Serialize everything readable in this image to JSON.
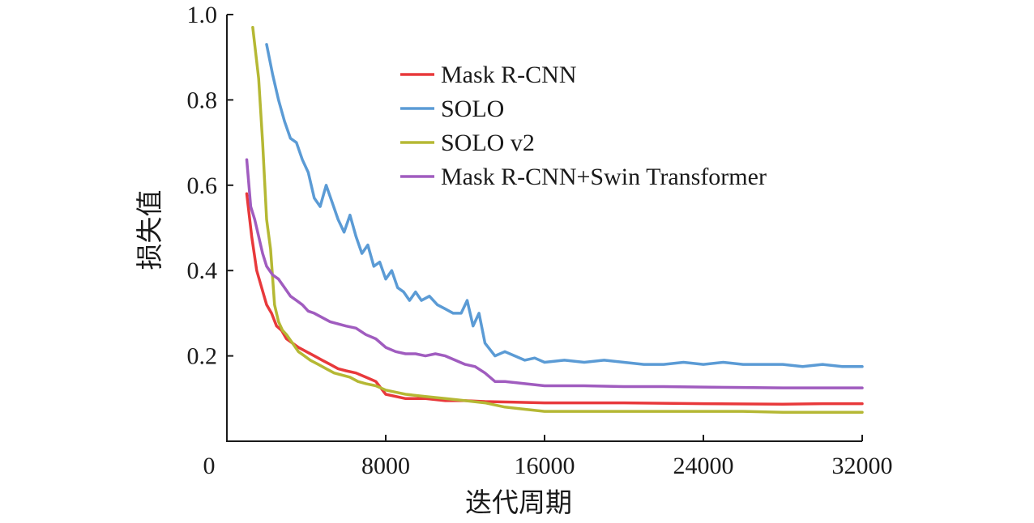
{
  "chart_data": {
    "type": "line",
    "title": "",
    "xlabel": "迭代周期",
    "ylabel": "损失值",
    "xlim": [
      0,
      32000
    ],
    "ylim": [
      0,
      1.0
    ],
    "x_ticks": [
      "0",
      "8000",
      "16000",
      "24000",
      "32000"
    ],
    "x_tick_values": [
      0,
      8000,
      16000,
      24000,
      32000
    ],
    "y_ticks": [
      "0.2",
      "0.4",
      "0.6",
      "0.8",
      "1.0"
    ],
    "y_tick_values": [
      0.2,
      0.4,
      0.6,
      0.8,
      1.0
    ],
    "grid": false,
    "legend_position": "top-center",
    "series": [
      {
        "name": "Mask R-CNN",
        "color": "#e8393b",
        "points": [
          [
            1000,
            0.58
          ],
          [
            1250,
            0.48
          ],
          [
            1500,
            0.4
          ],
          [
            1750,
            0.36
          ],
          [
            2000,
            0.32
          ],
          [
            2250,
            0.3
          ],
          [
            2500,
            0.27
          ],
          [
            2750,
            0.26
          ],
          [
            3000,
            0.24
          ],
          [
            3300,
            0.23
          ],
          [
            3600,
            0.22
          ],
          [
            4000,
            0.21
          ],
          [
            4400,
            0.2
          ],
          [
            4800,
            0.19
          ],
          [
            5200,
            0.18
          ],
          [
            5600,
            0.17
          ],
          [
            6000,
            0.165
          ],
          [
            6500,
            0.16
          ],
          [
            7000,
            0.15
          ],
          [
            7500,
            0.14
          ],
          [
            8000,
            0.11
          ],
          [
            9000,
            0.1
          ],
          [
            10000,
            0.1
          ],
          [
            11000,
            0.095
          ],
          [
            12000,
            0.095
          ],
          [
            13000,
            0.093
          ],
          [
            14000,
            0.092
          ],
          [
            16000,
            0.09
          ],
          [
            18000,
            0.09
          ],
          [
            20000,
            0.09
          ],
          [
            24000,
            0.088
          ],
          [
            28000,
            0.087
          ],
          [
            30000,
            0.088
          ],
          [
            32000,
            0.088
          ]
        ]
      },
      {
        "name": "SOLO",
        "color": "#5b9bd5",
        "points": [
          [
            2000,
            0.93
          ],
          [
            2300,
            0.86
          ],
          [
            2600,
            0.8
          ],
          [
            2900,
            0.75
          ],
          [
            3200,
            0.71
          ],
          [
            3500,
            0.7
          ],
          [
            3800,
            0.66
          ],
          [
            4100,
            0.63
          ],
          [
            4400,
            0.57
          ],
          [
            4700,
            0.55
          ],
          [
            5000,
            0.6
          ],
          [
            5300,
            0.56
          ],
          [
            5600,
            0.52
          ],
          [
            5900,
            0.49
          ],
          [
            6200,
            0.53
          ],
          [
            6500,
            0.48
          ],
          [
            6800,
            0.44
          ],
          [
            7100,
            0.46
          ],
          [
            7400,
            0.41
          ],
          [
            7700,
            0.42
          ],
          [
            8000,
            0.38
          ],
          [
            8300,
            0.4
          ],
          [
            8600,
            0.36
          ],
          [
            8900,
            0.35
          ],
          [
            9200,
            0.33
          ],
          [
            9500,
            0.35
          ],
          [
            9800,
            0.33
          ],
          [
            10200,
            0.34
          ],
          [
            10600,
            0.32
          ],
          [
            11000,
            0.31
          ],
          [
            11400,
            0.3
          ],
          [
            11800,
            0.3
          ],
          [
            12100,
            0.33
          ],
          [
            12400,
            0.27
          ],
          [
            12700,
            0.3
          ],
          [
            13000,
            0.23
          ],
          [
            13500,
            0.2
          ],
          [
            14000,
            0.21
          ],
          [
            14500,
            0.2
          ],
          [
            15000,
            0.19
          ],
          [
            15500,
            0.195
          ],
          [
            16000,
            0.185
          ],
          [
            17000,
            0.19
          ],
          [
            18000,
            0.185
          ],
          [
            19000,
            0.19
          ],
          [
            20000,
            0.185
          ],
          [
            21000,
            0.18
          ],
          [
            22000,
            0.18
          ],
          [
            23000,
            0.185
          ],
          [
            24000,
            0.18
          ],
          [
            25000,
            0.185
          ],
          [
            26000,
            0.18
          ],
          [
            27000,
            0.18
          ],
          [
            28000,
            0.18
          ],
          [
            29000,
            0.175
          ],
          [
            30000,
            0.18
          ],
          [
            31000,
            0.175
          ],
          [
            32000,
            0.175
          ]
        ]
      },
      {
        "name": "SOLO v2",
        "color": "#b5b834",
        "points": [
          [
            1300,
            0.97
          ],
          [
            1600,
            0.85
          ],
          [
            1800,
            0.7
          ],
          [
            2000,
            0.52
          ],
          [
            2200,
            0.45
          ],
          [
            2400,
            0.32
          ],
          [
            2600,
            0.28
          ],
          [
            2800,
            0.26
          ],
          [
            3000,
            0.25
          ],
          [
            3300,
            0.23
          ],
          [
            3600,
            0.21
          ],
          [
            3900,
            0.2
          ],
          [
            4200,
            0.19
          ],
          [
            4600,
            0.18
          ],
          [
            5000,
            0.17
          ],
          [
            5400,
            0.16
          ],
          [
            5800,
            0.155
          ],
          [
            6200,
            0.15
          ],
          [
            6600,
            0.14
          ],
          [
            7000,
            0.135
          ],
          [
            7500,
            0.13
          ],
          [
            8000,
            0.12
          ],
          [
            8500,
            0.115
          ],
          [
            9000,
            0.11
          ],
          [
            10000,
            0.105
          ],
          [
            11000,
            0.1
          ],
          [
            12000,
            0.095
          ],
          [
            13000,
            0.09
          ],
          [
            14000,
            0.08
          ],
          [
            15000,
            0.075
          ],
          [
            16000,
            0.07
          ],
          [
            18000,
            0.07
          ],
          [
            20000,
            0.07
          ],
          [
            22000,
            0.07
          ],
          [
            24000,
            0.07
          ],
          [
            26000,
            0.07
          ],
          [
            28000,
            0.068
          ],
          [
            30000,
            0.068
          ],
          [
            32000,
            0.068
          ]
        ]
      },
      {
        "name": "Mask R-CNN+Swin Transformer",
        "color": "#a05cbf",
        "points": [
          [
            1000,
            0.66
          ],
          [
            1200,
            0.55
          ],
          [
            1400,
            0.52
          ],
          [
            1600,
            0.48
          ],
          [
            1800,
            0.44
          ],
          [
            2000,
            0.41
          ],
          [
            2300,
            0.39
          ],
          [
            2600,
            0.38
          ],
          [
            2900,
            0.36
          ],
          [
            3200,
            0.34
          ],
          [
            3500,
            0.33
          ],
          [
            3800,
            0.32
          ],
          [
            4100,
            0.305
          ],
          [
            4400,
            0.3
          ],
          [
            4800,
            0.29
          ],
          [
            5200,
            0.28
          ],
          [
            5600,
            0.275
          ],
          [
            6000,
            0.27
          ],
          [
            6500,
            0.265
          ],
          [
            7000,
            0.25
          ],
          [
            7500,
            0.24
          ],
          [
            8000,
            0.22
          ],
          [
            8500,
            0.21
          ],
          [
            9000,
            0.205
          ],
          [
            9500,
            0.205
          ],
          [
            10000,
            0.2
          ],
          [
            10500,
            0.205
          ],
          [
            11000,
            0.2
          ],
          [
            11500,
            0.19
          ],
          [
            12000,
            0.18
          ],
          [
            12500,
            0.175
          ],
          [
            13000,
            0.16
          ],
          [
            13500,
            0.14
          ],
          [
            14000,
            0.14
          ],
          [
            15000,
            0.135
          ],
          [
            16000,
            0.13
          ],
          [
            18000,
            0.13
          ],
          [
            20000,
            0.128
          ],
          [
            22000,
            0.128
          ],
          [
            24000,
            0.127
          ],
          [
            26000,
            0.126
          ],
          [
            28000,
            0.125
          ],
          [
            30000,
            0.125
          ],
          [
            32000,
            0.125
          ]
        ]
      }
    ]
  }
}
